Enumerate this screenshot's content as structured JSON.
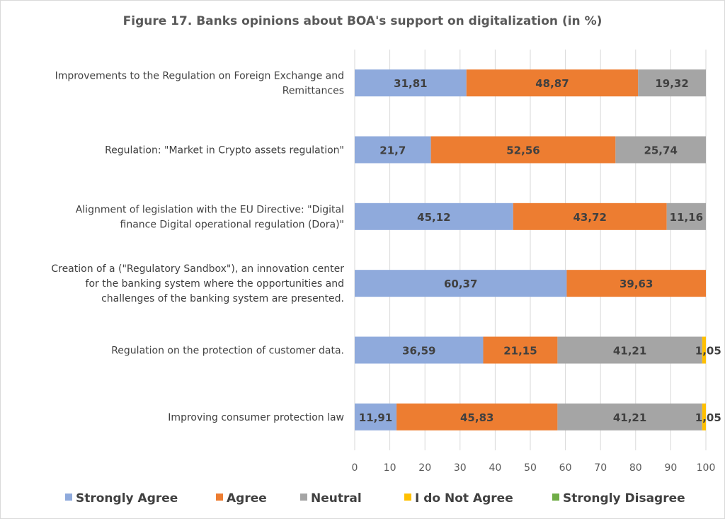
{
  "chart_data": {
    "type": "bar",
    "orientation": "horizontal",
    "stacked": true,
    "title": "Figure 17. Banks opinions about BOA's support on digitalization (in %)",
    "categories": [
      "Improvements to the Regulation on Foreign Exchange and Remittances",
      "Regulation: \"Market in Crypto assets regulation\"",
      "Alignment of legislation with the EU Directive: \"Digital finance Digital operational regulation (Dora)\"",
      "Creation of a (\"Regulatory Sandbox\"), an innovation center for the banking system where the opportunities and challenges of the banking system are presented.",
      "Regulation on the protection of customer data.",
      "Improving consumer protection law"
    ],
    "category_lines": [
      [
        "Improvements to the Regulation on Foreign Exchange and",
        "Remittances"
      ],
      [
        "Regulation: \"Market in Crypto assets regulation\""
      ],
      [
        "Alignment of legislation with the EU Directive: \"Digital",
        "finance Digital operational regulation (Dora)\""
      ],
      [
        "Creation of a (\"Regulatory Sandbox\"), an innovation center",
        "for the banking system where the opportunities and",
        "challenges of the banking system are presented."
      ],
      [
        "Regulation on the protection of customer data."
      ],
      [
        "Improving consumer protection law"
      ]
    ],
    "series": [
      {
        "name": "Strongly Agree",
        "color": "#8faadc",
        "values": [
          31.81,
          21.7,
          45.12,
          60.37,
          36.59,
          11.91
        ],
        "labels": [
          "31,81",
          "21,7",
          "45,12",
          "60,37",
          "36,59",
          "11,91"
        ]
      },
      {
        "name": "Agree",
        "color": "#ed7d31",
        "values": [
          48.87,
          52.56,
          43.72,
          39.63,
          21.15,
          45.83
        ],
        "labels": [
          "48,87",
          "52,56",
          "43,72",
          "39,63",
          "21,15",
          "45,83"
        ]
      },
      {
        "name": "Neutral",
        "color": "#a5a5a5",
        "values": [
          19.32,
          25.74,
          11.16,
          0,
          41.21,
          41.21
        ],
        "labels": [
          "19,32",
          "25,74",
          "11,16",
          "",
          "41,21",
          "41,21"
        ]
      },
      {
        "name": "I do Not Agree",
        "color": "#ffc000",
        "values": [
          0,
          0,
          0,
          0,
          1.05,
          1.05
        ],
        "labels": [
          "",
          "",
          "",
          "",
          "1,05",
          "1,05"
        ]
      },
      {
        "name": "Strongly Disagree",
        "color": "#70ad47",
        "values": [
          0,
          0,
          0,
          0,
          0,
          0
        ],
        "labels": [
          "",
          "",
          "",
          "",
          "",
          ""
        ]
      }
    ],
    "xlim": [
      0,
      100
    ],
    "xticks": [
      0,
      10,
      20,
      30,
      40,
      50,
      60,
      70,
      80,
      90,
      100
    ],
    "grid": true,
    "legend_position": "bottom"
  }
}
